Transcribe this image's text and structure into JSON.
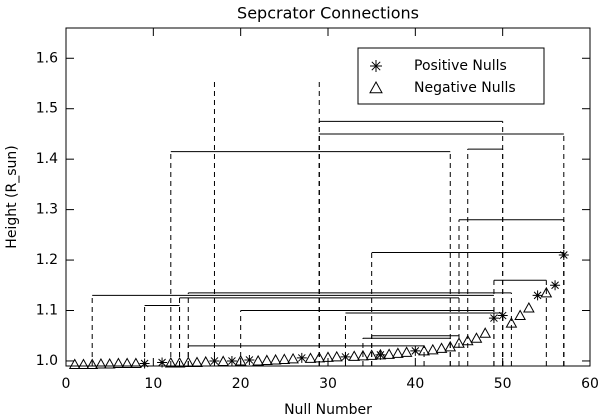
{
  "chart_data": {
    "type": "scatter",
    "title": "Sepcrator Connections",
    "x_label": "Null Number",
    "y_label": "Height (R_sun)",
    "xlim": [
      0,
      60
    ],
    "ylim": [
      0.99,
      1.66
    ],
    "xticks": [
      0,
      10,
      20,
      30,
      40,
      50,
      60
    ],
    "yticks": [
      {
        "value": 1.0,
        "label": "1.0"
      },
      1.1,
      1.2,
      1.3,
      1.4,
      1.5,
      1.6
    ],
    "legend": "upper right",
    "series": [
      {
        "name": "Positive Nulls",
        "marker": "asterisk",
        "color": "#000000",
        "x": [
          9,
          11,
          17,
          19,
          21,
          27,
          32,
          36,
          40,
          49,
          50,
          54,
          56,
          57
        ],
        "values": [
          0.995,
          0.997,
          1.0,
          1.0,
          1.002,
          1.006,
          1.008,
          1.012,
          1.02,
          1.085,
          1.09,
          1.13,
          1.15,
          1.21
        ]
      },
      {
        "name": "Negative Nulls",
        "marker": "triangle",
        "color": "#000000",
        "x": [
          1,
          2,
          3,
          4,
          5,
          6,
          7,
          8,
          12,
          13,
          14,
          15,
          16,
          18,
          20,
          22,
          23,
          24,
          25,
          26,
          28,
          29,
          30,
          31,
          33,
          34,
          35,
          36,
          37,
          38,
          39,
          41,
          42,
          43,
          44,
          45,
          46,
          47,
          48,
          51,
          52,
          53,
          55
        ],
        "values": [
          0.993,
          0.993,
          0.993,
          0.994,
          0.994,
          0.995,
          0.995,
          0.995,
          0.996,
          0.996,
          0.997,
          0.997,
          0.998,
          0.999,
          1.0,
          1.0,
          1.001,
          1.002,
          1.003,
          1.004,
          1.005,
          1.006,
          1.007,
          1.008,
          1.009,
          1.01,
          1.011,
          1.012,
          1.013,
          1.015,
          1.017,
          1.02,
          1.022,
          1.025,
          1.028,
          1.035,
          1.04,
          1.045,
          1.055,
          1.075,
          1.09,
          1.105,
          1.135
        ]
      }
    ],
    "connections": [
      {
        "x": [
          29,
          50
        ],
        "height": 1.475
      },
      {
        "x": [
          29,
          57
        ],
        "height": 1.45
      },
      {
        "x": [
          12,
          44
        ],
        "height": 1.415
      },
      {
        "x": [
          46,
          50
        ],
        "height": 1.42
      },
      {
        "x": [
          45,
          57
        ],
        "height": 1.28
      },
      {
        "x": [
          35,
          57
        ],
        "height": 1.215
      },
      {
        "x": [
          49,
          55
        ],
        "height": 1.16
      },
      {
        "x": [
          14,
          51
        ],
        "height": 1.135
      },
      {
        "x": [
          3,
          49
        ],
        "height": 1.13
      },
      {
        "x": [
          13,
          45
        ],
        "height": 1.125
      },
      {
        "x": [
          20,
          49
        ],
        "height": 1.1
      },
      {
        "x": [
          32,
          50
        ],
        "height": 1.095
      },
      {
        "x": [
          9,
          13
        ],
        "height": 1.11
      },
      {
        "x": [
          35,
          45
        ],
        "height": 1.05
      },
      {
        "x": [
          34,
          44
        ],
        "height": 1.045
      },
      {
        "x": [
          14,
          41
        ],
        "height": 1.03
      }
    ],
    "vertical_lines": [
      {
        "x": 17,
        "height": 1.56
      },
      {
        "x": 29,
        "height": 1.555
      }
    ]
  }
}
